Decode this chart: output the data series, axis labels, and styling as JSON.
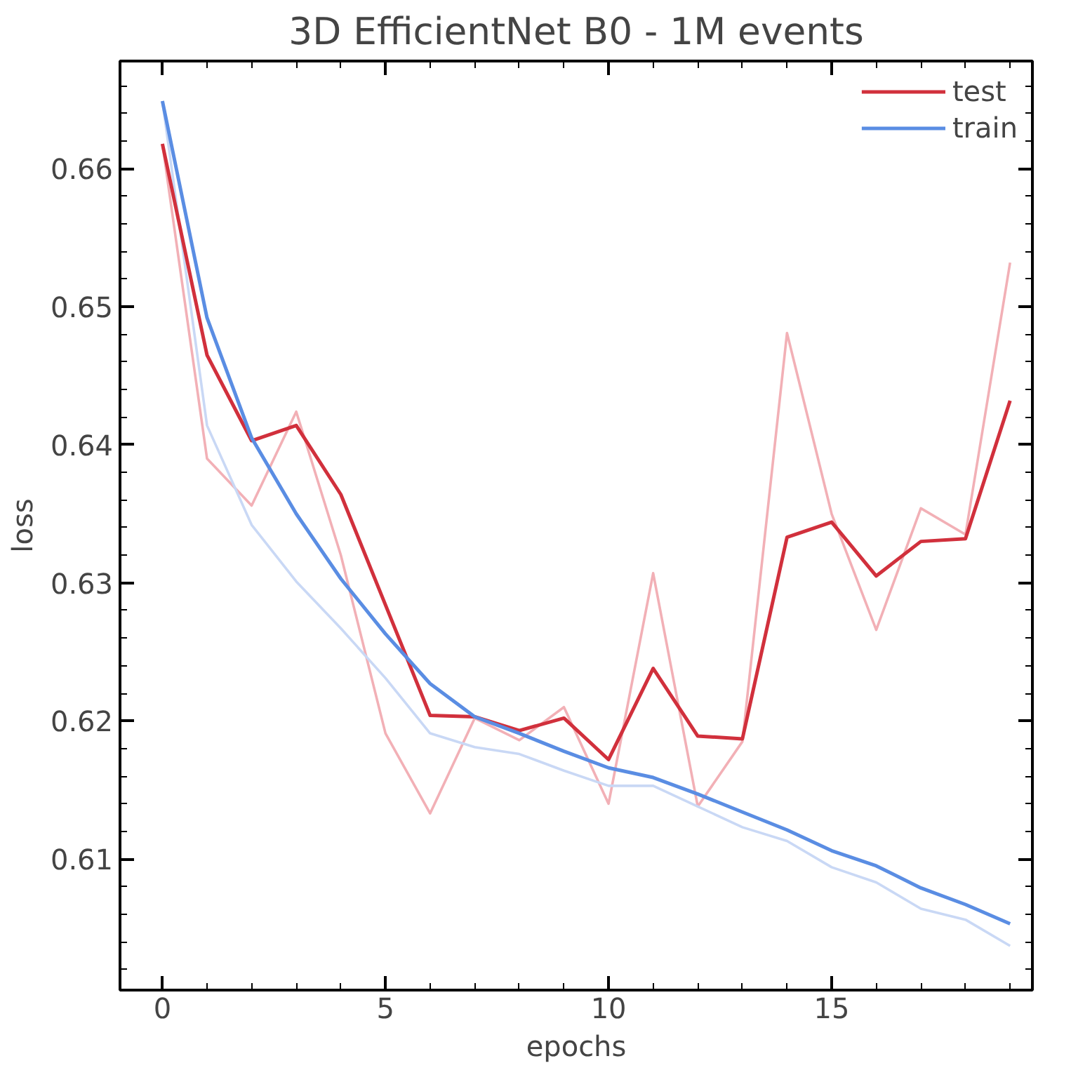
{
  "chart_data": {
    "type": "line",
    "title": "3D EfficientNet B0 - 1M events",
    "xlabel": "epochs",
    "ylabel": "loss",
    "x": [
      0,
      1,
      2,
      3,
      4,
      5,
      6,
      7,
      8,
      9,
      10,
      11,
      12,
      13,
      14,
      15,
      16,
      17,
      18,
      19
    ],
    "series": [
      {
        "color": "#f2b0b6",
        "values": [
          0.6618,
          0.639,
          0.6356,
          0.6424,
          0.632,
          0.6191,
          0.6133,
          0.6202,
          0.6186,
          0.621,
          0.614,
          0.6307,
          0.6138,
          0.6185,
          0.6481,
          0.635,
          0.6266,
          0.6354,
          0.6335,
          0.6532
        ]
      },
      {
        "color": "#c9d8f5",
        "values": [
          0.6649,
          0.6414,
          0.6342,
          0.6301,
          0.6267,
          0.6231,
          0.6191,
          0.6181,
          0.6176,
          0.6164,
          0.6153,
          0.6153,
          0.6138,
          0.6123,
          0.6113,
          0.6094,
          0.6083,
          0.6064,
          0.6056,
          0.6037
        ]
      },
      {
        "name": "test",
        "color": "#d1303c",
        "values": [
          0.6618,
          0.6465,
          0.6403,
          0.6414,
          0.6364,
          0.6284,
          0.6204,
          0.6203,
          0.6193,
          0.6202,
          0.6172,
          0.6238,
          0.6189,
          0.6187,
          0.6333,
          0.6344,
          0.6305,
          0.633,
          0.6332,
          0.6432
        ]
      },
      {
        "name": "train",
        "color": "#5a8de3",
        "values": [
          0.6649,
          0.6492,
          0.6405,
          0.635,
          0.6303,
          0.6263,
          0.6227,
          0.6203,
          0.6191,
          0.6178,
          0.6166,
          0.6159,
          0.6147,
          0.6134,
          0.6121,
          0.6106,
          0.6095,
          0.6079,
          0.6067,
          0.6053
        ]
      }
    ],
    "xlim": [
      -0.95,
      19.5
    ],
    "ylim": [
      0.6005,
      0.6678
    ],
    "xticks": [
      0,
      5,
      10,
      15
    ],
    "yticks": [
      0.61,
      0.62,
      0.63,
      0.64,
      0.65,
      0.66
    ],
    "grid": false,
    "legend": "top right",
    "line_style": "solid",
    "marker": "none"
  }
}
